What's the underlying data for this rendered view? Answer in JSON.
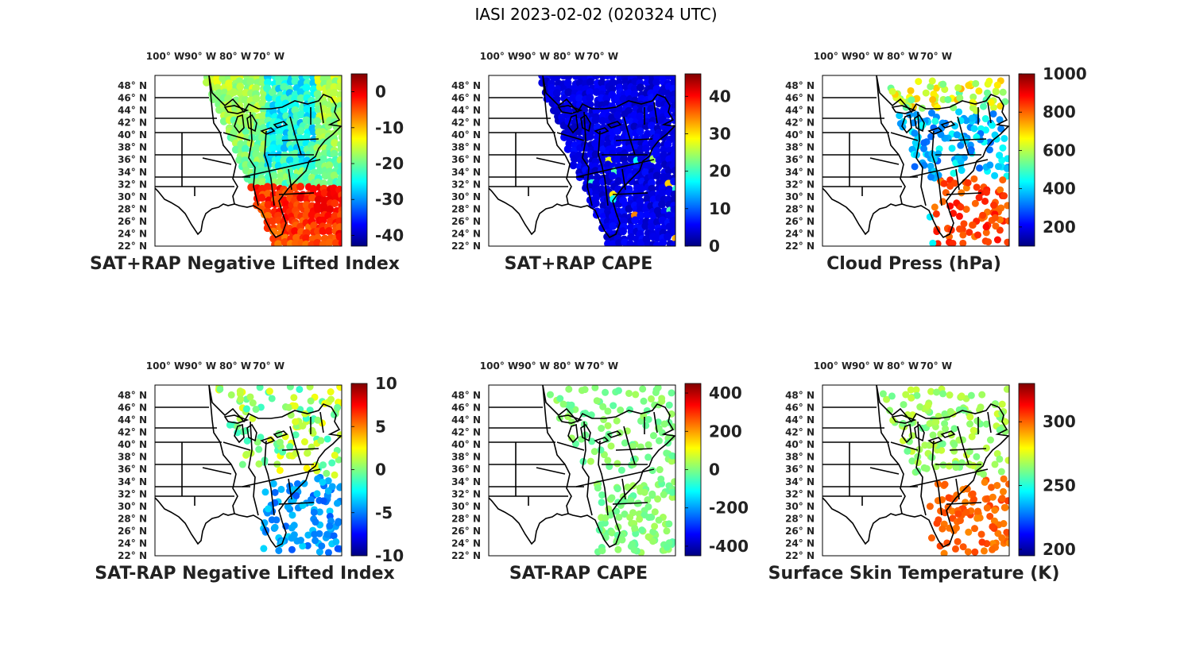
{
  "title": "IASI 2023-02-02 (020324 UTC)",
  "lon_labels": [
    "100",
    "90",
    "80",
    "70"
  ],
  "lon_suffix": "W",
  "lat_labels": [
    "48",
    "46",
    "44",
    "42",
    "40",
    "38",
    "36",
    "34",
    "32",
    "30",
    "28",
    "26",
    "24",
    "22"
  ],
  "lat_suffix": "N",
  "degree_symbol": "°",
  "colormap": "jet",
  "colors": {
    "land_fill": "#ffffff",
    "border_lines": "#000000",
    "text": "#222222"
  },
  "chart_data": [
    {
      "type": "heatmap",
      "title": "SAT+RAP Negative Lifted Index",
      "colorbar_ticks": [
        "0",
        "-10",
        "-20",
        "-30",
        "-40"
      ],
      "colorbar_range": [
        -43,
        5
      ],
      "lon_range": [
        -105,
        -68
      ],
      "lat_range": [
        22,
        50
      ]
    },
    {
      "type": "heatmap",
      "title": "SAT+RAP CAPE",
      "colorbar_ticks": [
        "40",
        "30",
        "20",
        "10",
        "0"
      ],
      "colorbar_range": [
        0,
        46
      ],
      "lon_range": [
        -105,
        -68
      ],
      "lat_range": [
        22,
        50
      ]
    },
    {
      "type": "heatmap",
      "title": "Cloud Press (hPa)",
      "colorbar_ticks": [
        "1000",
        "800",
        "600",
        "400",
        "200"
      ],
      "colorbar_range": [
        100,
        1000
      ],
      "lon_range": [
        -105,
        -68
      ],
      "lat_range": [
        22,
        50
      ]
    },
    {
      "type": "heatmap",
      "title": "SAT-RAP Negative Lifted Index",
      "colorbar_ticks": [
        "10",
        "5",
        "0",
        "-5",
        "-10"
      ],
      "colorbar_range": [
        -10,
        10
      ],
      "lon_range": [
        -105,
        -68
      ],
      "lat_range": [
        22,
        50
      ]
    },
    {
      "type": "heatmap",
      "title": "SAT-RAP CAPE",
      "colorbar_ticks": [
        "400",
        "200",
        "0",
        "-200",
        "-400"
      ],
      "colorbar_range": [
        -450,
        450
      ],
      "lon_range": [
        -105,
        -68
      ],
      "lat_range": [
        22,
        50
      ]
    },
    {
      "type": "heatmap",
      "title": "Surface Skin Temperature (K)",
      "colorbar_ticks": [
        "300",
        "250",
        "200"
      ],
      "colorbar_range": [
        195,
        330
      ],
      "lon_range": [
        -105,
        -68
      ],
      "lat_range": [
        22,
        50
      ]
    }
  ]
}
